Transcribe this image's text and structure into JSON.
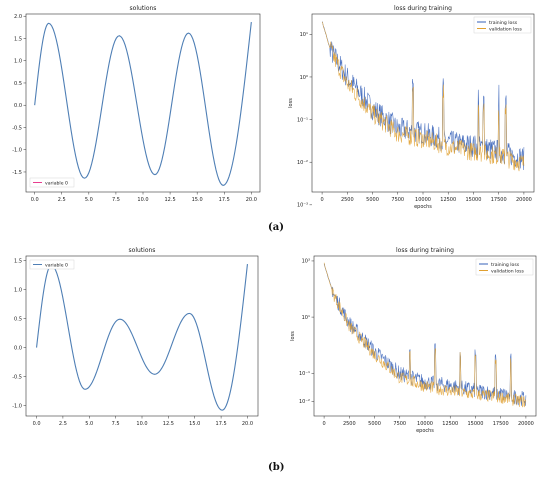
{
  "panels": [
    {
      "label": "(a)"
    },
    {
      "label": "(b)"
    }
  ],
  "colors": {
    "variable": "#4f7fb5",
    "training": "#3560b8",
    "validation": "#e0a030",
    "accent": "#e83d8f"
  },
  "chart_data": [
    {
      "type": "line",
      "title": "solutions",
      "xlabel": "",
      "ylabel": "",
      "xlim": [
        -0.8,
        20.8
      ],
      "ylim": [
        -1.95,
        2.05
      ],
      "xticks": [
        0,
        2.5,
        5,
        7.5,
        10,
        12.5,
        15,
        17.5,
        20
      ],
      "xtick_labels": [
        "0.0",
        "2.5",
        "5.0",
        "7.5",
        "10.0",
        "12.5",
        "15.0",
        "17.5",
        "20.0"
      ],
      "yticks": [
        -1.5,
        -1,
        -0.5,
        0,
        0.5,
        1,
        1.5,
        2
      ],
      "ytick_labels": [
        "-1.5",
        "-1.0",
        "-0.5",
        "0.0",
        "0.5",
        "1.0",
        "1.5",
        "2.0"
      ],
      "legend_position": "bottom-left",
      "series": [
        {
          "name": "variable 0",
          "x": [
            0,
            1.3,
            4.6,
            7.8,
            11.1,
            14.2,
            17.4,
            20
          ],
          "y": [
            0,
            1.84,
            -1.64,
            1.56,
            -1.56,
            1.62,
            -1.8,
            1.87
          ]
        }
      ]
    },
    {
      "type": "line",
      "title": "loss during training",
      "xlabel": "epochs",
      "ylabel": "loss",
      "yscale": "log",
      "xlim": [
        -1000,
        21000
      ],
      "ylim": [
        0.002,
        30
      ],
      "xticks": [
        0,
        2500,
        5000,
        7500,
        10000,
        12500,
        15000,
        17500,
        20000
      ],
      "xtick_labels": [
        "0",
        "2500",
        "5000",
        "7500",
        "10000",
        "12500",
        "15000",
        "17500",
        "20000"
      ],
      "yticks": [
        10,
        1,
        0.1,
        0.01,
        0.001
      ],
      "ytick_labels": [
        "10¹",
        "10⁰",
        "10⁻¹",
        "10⁻²",
        "10⁻³"
      ],
      "legend_position": "top-right",
      "series": [
        {
          "name": "training loss",
          "x": [
            0,
            1000,
            2500,
            5000,
            7500,
            10000,
            12500,
            15000,
            17500,
            20000
          ],
          "y": [
            20,
            3,
            0.8,
            0.15,
            0.05,
            0.04,
            0.025,
            0.02,
            0.015,
            0.01
          ]
        },
        {
          "name": "validation loss",
          "x": [
            0,
            1000,
            2500,
            5000,
            7500,
            10000,
            12500,
            15000,
            17500,
            20000
          ],
          "y": [
            20,
            3,
            0.6,
            0.12,
            0.04,
            0.03,
            0.02,
            0.015,
            0.012,
            0.008
          ]
        }
      ]
    },
    {
      "type": "line",
      "title": "solutions",
      "xlabel": "",
      "ylabel": "",
      "xlim": [
        -1,
        21
      ],
      "ylim": [
        -1.18,
        1.58
      ],
      "xticks": [
        0,
        2.5,
        5,
        7.5,
        10,
        12.5,
        15,
        17.5,
        20
      ],
      "xtick_labels": [
        "0.0",
        "2.5",
        "5.0",
        "7.5",
        "10.0",
        "12.5",
        "15.0",
        "17.5",
        "20.0"
      ],
      "yticks": [
        -1,
        -0.5,
        0,
        0.5,
        1,
        1.5
      ],
      "ytick_labels": [
        "-1.0",
        "-0.5",
        "0.0",
        "0.5",
        "1.0",
        "1.5"
      ],
      "legend_position": "top-left",
      "series": [
        {
          "name": "variable 0",
          "x": [
            0,
            1.4,
            4.6,
            7.9,
            11.2,
            14.5,
            17.6,
            20
          ],
          "y": [
            0,
            1.42,
            -0.72,
            0.49,
            -0.46,
            0.59,
            -1.08,
            1.44
          ]
        }
      ]
    },
    {
      "type": "line",
      "title": "loss during training",
      "xlabel": "epochs",
      "ylabel": "loss",
      "yscale": "log",
      "xlim": [
        -1000,
        21000
      ],
      "ylim": [
        0.003,
        1500
      ],
      "xticks": [
        0,
        2500,
        5000,
        7500,
        10000,
        12500,
        15000,
        17500,
        20000
      ],
      "xtick_labels": [
        "0",
        "2500",
        "5000",
        "7500",
        "10000",
        "12500",
        "15000",
        "17500",
        "20000"
      ],
      "yticks": [
        1000,
        10,
        0.1,
        0.01
      ],
      "ytick_labels": [
        "10³",
        "10¹",
        "10⁻¹",
        "10⁻²"
      ],
      "legend_position": "top-right",
      "series": [
        {
          "name": "training loss",
          "x": [
            0,
            1000,
            2500,
            5000,
            7500,
            10000,
            12500,
            15000,
            17500,
            20000
          ],
          "y": [
            800,
            50,
            5,
            0.5,
            0.08,
            0.04,
            0.03,
            0.02,
            0.015,
            0.01
          ]
        },
        {
          "name": "validation loss",
          "x": [
            0,
            1000,
            2500,
            5000,
            7500,
            10000,
            12500,
            15000,
            17500,
            20000
          ],
          "y": [
            800,
            50,
            4,
            0.4,
            0.06,
            0.03,
            0.02,
            0.015,
            0.012,
            0.008
          ]
        }
      ]
    }
  ]
}
